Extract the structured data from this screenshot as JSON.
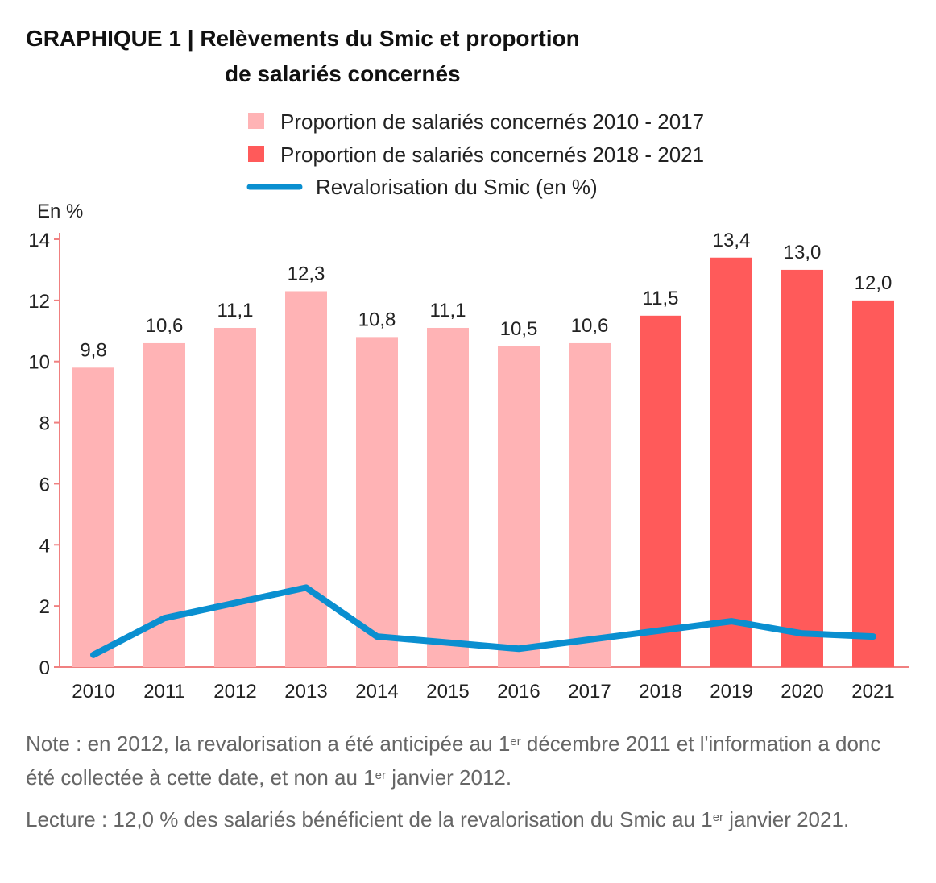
{
  "chart_data": {
    "type": "bar",
    "title": "GRAPHIQUE 1 | Relèvements du Smic et proportion de salariés concernés",
    "title_line1": "GRAPHIQUE 1 | Relèvements du Smic et proportion",
    "title_line2": "de salariés concernés",
    "ylabel": "En %",
    "ylim": [
      0,
      14
    ],
    "yticks": [
      0,
      2,
      4,
      6,
      8,
      10,
      12,
      14
    ],
    "grid": false,
    "legend_placement": "top",
    "categories": [
      "2010",
      "2011",
      "2012",
      "2013",
      "2014",
      "2015",
      "2016",
      "2017",
      "2018",
      "2019",
      "2020",
      "2021"
    ],
    "series": [
      {
        "name": "Proportion de salariés concernés 2010 - 2017",
        "type": "bar",
        "color": "#ffb3b5",
        "values": [
          9.8,
          10.6,
          11.1,
          12.3,
          10.8,
          11.1,
          10.5,
          10.6,
          null,
          null,
          null,
          null
        ],
        "labels": [
          "9,8",
          "10,6",
          "11,1",
          "12,3",
          "10,8",
          "11,1",
          "10,5",
          "10,6",
          null,
          null,
          null,
          null
        ]
      },
      {
        "name": "Proportion de salariés concernés 2018 - 2021",
        "type": "bar",
        "color": "#ff5a5a",
        "values": [
          null,
          null,
          null,
          null,
          null,
          null,
          null,
          null,
          11.5,
          13.4,
          13.0,
          12.0
        ],
        "labels": [
          null,
          null,
          null,
          null,
          null,
          null,
          null,
          null,
          "11,5",
          "13,4",
          "13,0",
          "12,0"
        ]
      },
      {
        "name": "Revalorisation du Smic (en %)",
        "type": "line",
        "color": "#0a8fd0",
        "values": [
          0.4,
          1.6,
          2.1,
          2.6,
          1.0,
          0.8,
          0.6,
          0.9,
          1.2,
          1.5,
          1.1,
          1.0
        ]
      }
    ],
    "axis_color": "#f08080"
  },
  "notes": {
    "note_a": "Note : en 2012, la revalorisation a été anticipée au 1",
    "note_sup1": "er",
    "note_b": " décembre 2011 et l'information a donc été collectée à cette date, et non au 1",
    "note_sup2": "er",
    "note_c": " janvier 2012.",
    "lecture_a": "Lecture : 12,0 % des salariés bénéficient de la revalorisation du Smic au 1",
    "lecture_sup": "er",
    "lecture_b": " janvier 2021."
  }
}
